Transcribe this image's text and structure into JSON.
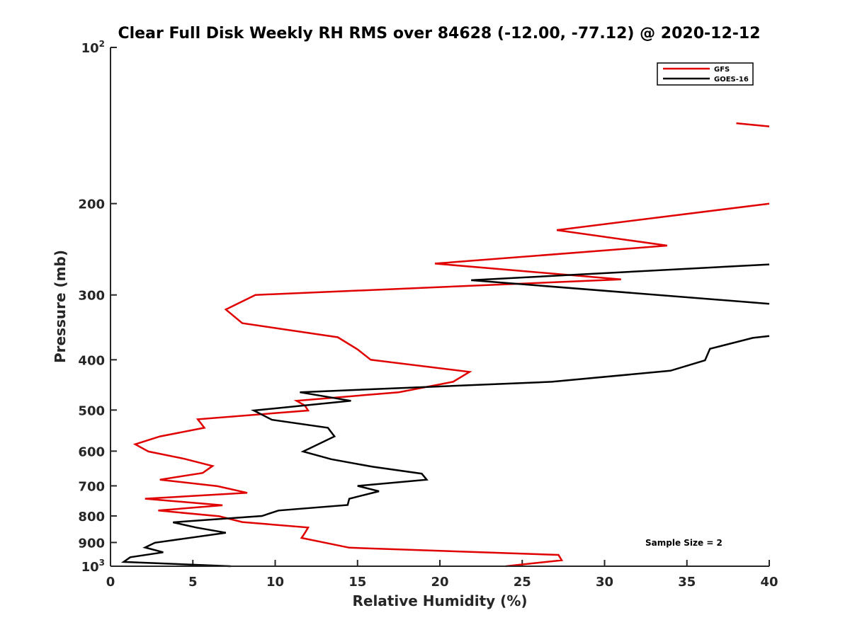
{
  "chart_data": {
    "type": "line",
    "title": "Clear Full Disk Weekly RH RMS over 84628 (-12.00, -77.12) @ 2020-12-12",
    "xlabel": "Relative Humidity (%)",
    "ylabel": "Pressure (mb)",
    "xlim": [
      0,
      40
    ],
    "ylim": [
      100,
      1000
    ],
    "yscale": "log",
    "y_reversed": true,
    "grid": false,
    "legend_position": "top-right",
    "x_ticks": [
      "0",
      "5",
      "10",
      "15",
      "20",
      "25",
      "30",
      "35",
      "40"
    ],
    "y_ticks": [
      {
        "value": 100,
        "label": "10",
        "sup": "2"
      },
      {
        "value": 200,
        "label": "200",
        "sup": ""
      },
      {
        "value": 300,
        "label": "300",
        "sup": ""
      },
      {
        "value": 400,
        "label": "400",
        "sup": ""
      },
      {
        "value": 500,
        "label": "500",
        "sup": ""
      },
      {
        "value": 600,
        "label": "600",
        "sup": ""
      },
      {
        "value": 700,
        "label": "700",
        "sup": ""
      },
      {
        "value": 800,
        "label": "800",
        "sup": ""
      },
      {
        "value": 900,
        "label": "900",
        "sup": ""
      },
      {
        "value": 1000,
        "label": "10",
        "sup": "3"
      }
    ],
    "series": [
      {
        "name": "GFS",
        "color": "#e00000",
        "segments": [
          [
            [
              38,
              140
            ],
            [
              40,
              142
            ]
          ],
          [
            [
              40,
              200
            ],
            [
              27.1,
              225
            ],
            [
              33.8,
              241
            ],
            [
              19.7,
              261
            ],
            [
              31.0,
              280
            ],
            [
              8.8,
              300
            ],
            [
              7.0,
              320
            ],
            [
              8.0,
              340
            ],
            [
              13.8,
              362
            ],
            [
              15.0,
              382
            ],
            [
              15.8,
              400
            ],
            [
              21.8,
              422
            ],
            [
              20.8,
              441
            ],
            [
              17.5,
              462
            ],
            [
              11.3,
              480
            ],
            [
              11.8,
              490
            ],
            [
              12.0,
              501
            ],
            [
              5.3,
              521
            ],
            [
              5.7,
              541
            ],
            [
              3.0,
              562
            ],
            [
              1.5,
              582
            ],
            [
              2.3,
              601
            ],
            [
              4.5,
              621
            ],
            [
              6.2,
              641
            ],
            [
              5.6,
              661
            ],
            [
              3.0,
              681
            ],
            [
              6.5,
              701
            ],
            [
              8.3,
              722
            ],
            [
              2.1,
              741
            ],
            [
              6.8,
              763
            ],
            [
              2.9,
              781
            ],
            [
              6.6,
              801
            ],
            [
              8.0,
              822
            ],
            [
              12.0,
              842
            ],
            [
              11.8,
              863
            ],
            [
              11.6,
              882
            ],
            [
              14.5,
              921
            ],
            [
              27.2,
              951
            ],
            [
              27.4,
              974
            ],
            [
              24.0,
              1000
            ]
          ]
        ]
      },
      {
        "name": "GOES-16",
        "color": "#000000",
        "segments": [
          [
            [
              40,
              262
            ],
            [
              21.9,
              281
            ],
            [
              40,
              312
            ]
          ],
          [
            [
              40,
              360
            ],
            [
              39.0,
              363
            ],
            [
              36.4,
              381
            ],
            [
              36.1,
              401
            ],
            [
              34.0,
              420
            ],
            [
              26.8,
              441
            ],
            [
              11.5,
              462
            ],
            [
              14.6,
              480
            ],
            [
              8.7,
              501
            ],
            [
              9.8,
              522
            ],
            [
              13.2,
              541
            ],
            [
              13.6,
              562
            ],
            [
              11.7,
              601
            ],
            [
              13.4,
              622
            ],
            [
              15.9,
              643
            ],
            [
              18.9,
              663
            ],
            [
              19.2,
              681
            ],
            [
              15.0,
              700
            ],
            [
              16.3,
              717
            ],
            [
              14.5,
              741
            ],
            [
              14.4,
              762
            ],
            [
              10.2,
              781
            ],
            [
              9.2,
              800
            ],
            [
              3.8,
              823
            ],
            [
              5.2,
              842
            ],
            [
              7.0,
              862
            ],
            [
              2.7,
              901
            ],
            [
              2.1,
              920
            ],
            [
              3.2,
              940
            ],
            [
              1.2,
              961
            ],
            [
              0.8,
              981
            ],
            [
              7.3,
              1000
            ]
          ]
        ]
      }
    ],
    "annotation": "Sample Size = 2"
  }
}
